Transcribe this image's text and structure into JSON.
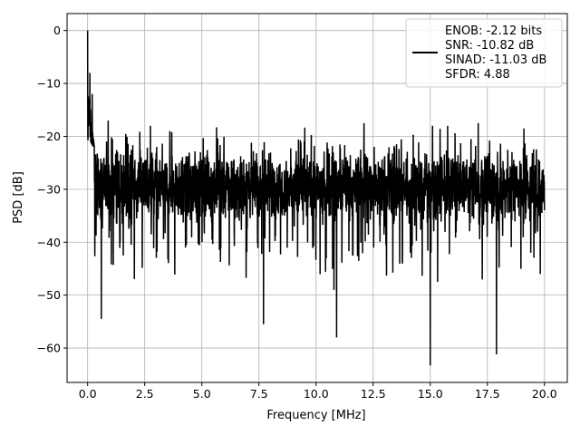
{
  "chart_data": {
    "type": "line",
    "title": "",
    "xlabel": "Frequency [MHz]",
    "ylabel": "PSD [dB]",
    "xlim": [
      -0.9,
      21.0
    ],
    "ylim": [
      -66.5,
      3.2
    ],
    "xticks": [
      0.0,
      2.5,
      5.0,
      7.5,
      10.0,
      12.5,
      15.0,
      17.5,
      20.0
    ],
    "xtick_labels": [
      "0.0",
      "2.5",
      "5.0",
      "7.5",
      "10.0",
      "12.5",
      "15.0",
      "17.5",
      "20.0"
    ],
    "yticks": [
      0,
      -10,
      -20,
      -30,
      -40,
      -50,
      -60
    ],
    "ytick_labels": [
      "0",
      "−10",
      "−20",
      "−30",
      "−40",
      "−50",
      "−60"
    ],
    "grid": true,
    "legend_placement": "top-right",
    "series": [
      {
        "name": "ENOB: -2.12 bits\nSNR: -10.82 dB\nSINAD: -11.03 dB\nSFDR: 4.88",
        "color": "#000000",
        "x_range": [
          0.0,
          20.0
        ],
        "noise_floor_band": [
          -35,
          -24
        ],
        "peaks": [
          {
            "x": 0.0,
            "y": 0.0
          },
          {
            "x": 0.1,
            "y": -8
          },
          {
            "x": 0.2,
            "y": -12
          },
          {
            "x": 0.9,
            "y": -17
          },
          {
            "x": 2.75,
            "y": -18
          },
          {
            "x": 3.6,
            "y": -19
          },
          {
            "x": 12.1,
            "y": -17.5
          },
          {
            "x": 15.1,
            "y": -18
          },
          {
            "x": 17.1,
            "y": -17.5
          },
          {
            "x": 19.1,
            "y": -18.5
          }
        ],
        "troughs": [
          {
            "x": 0.6,
            "y": -54.5
          },
          {
            "x": 7.7,
            "y": -55.5
          },
          {
            "x": 10.9,
            "y": -58
          },
          {
            "x": 15.0,
            "y": -63.3
          },
          {
            "x": 17.9,
            "y": -61.2
          }
        ]
      }
    ],
    "legend_lines": [
      "ENOB: -2.12 bits",
      "SNR: -10.82 dB",
      "SINAD: -11.03 dB",
      "SFDR: 4.88"
    ]
  }
}
